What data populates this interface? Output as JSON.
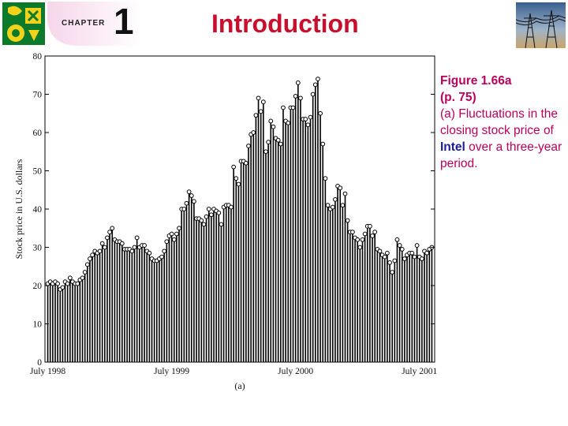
{
  "header": {
    "chapter_label": "CHAPTER",
    "chapter_number": "1",
    "title": "Introduction"
  },
  "caption": {
    "heading": "Figure 1.66a",
    "page": "(p. 75)",
    "text_before": "(a) Fluctuations in the closing stock price of ",
    "highlight": "Intel",
    "text_after": " over a three-year period."
  },
  "chart_data": {
    "type": "bar",
    "ylabel": "Stock price in U.S. dollars",
    "panel_label": "(a)",
    "ylim": [
      0,
      80
    ],
    "y_ticks": [
      0,
      10,
      20,
      30,
      40,
      50,
      60,
      70,
      80
    ],
    "x_tick_labels": [
      "July 1998",
      "July 1999",
      "July 2000",
      "July 2001"
    ],
    "x_tick_index": [
      0,
      50,
      100,
      150
    ],
    "values": [
      20.5,
      21,
      20.5,
      21,
      20.5,
      19,
      19.5,
      21,
      20.5,
      22,
      21,
      20.5,
      20.5,
      21.5,
      22,
      23.5,
      25.5,
      27,
      28,
      29,
      28.5,
      29,
      31,
      30,
      32.5,
      34,
      35,
      32,
      31.5,
      31.5,
      31,
      29.5,
      29.5,
      29.5,
      29,
      30,
      32.5,
      30,
      30.5,
      30.5,
      29,
      28.5,
      27,
      26.5,
      26.5,
      27,
      27.5,
      29,
      31.5,
      33,
      33.5,
      32,
      33.5,
      35,
      40,
      40,
      41.5,
      44.5,
      43.5,
      42,
      37.5,
      37.5,
      37,
      36,
      38,
      40,
      38.5,
      40,
      39.5,
      39,
      36,
      40.5,
      41,
      41,
      40.5,
      51,
      48,
      46.5,
      52.5,
      52.5,
      52,
      56.5,
      59.5,
      60,
      64.5,
      69,
      65.5,
      68,
      55,
      57.5,
      63,
      61.5,
      58.5,
      58,
      57,
      66.5,
      63,
      62.5,
      66.5,
      66.5,
      69.5,
      73,
      69,
      63.5,
      63.5,
      62,
      64,
      70,
      72.5,
      74,
      65,
      57,
      48,
      41,
      40,
      40.5,
      42.5,
      46,
      45.5,
      41,
      44,
      37,
      34,
      34,
      32.5,
      32,
      30,
      32,
      33.5,
      35.5,
      35.5,
      33,
      34,
      29.5,
      29,
      28,
      27.5,
      28.5,
      26,
      23.5,
      26.5,
      32,
      30.5,
      29.5,
      27,
      28,
      28.5,
      28.5,
      27.5,
      30.5,
      27.5,
      27,
      29,
      28.5,
      29.5,
      30
    ]
  },
  "colors": {
    "title": "#c8102e",
    "caption": "#b8005c",
    "highlight": "#1a1a9c",
    "bars": "#000000"
  }
}
